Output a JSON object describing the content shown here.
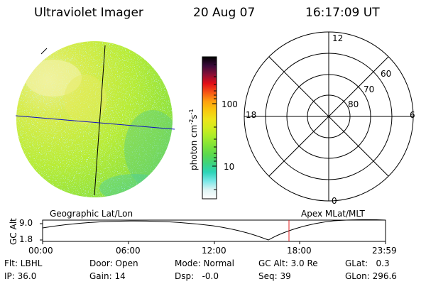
{
  "header": {
    "instrument": "Ultraviolet Imager",
    "date": "20 Aug 07",
    "time": "16:17:09 UT"
  },
  "colorbar": {
    "label": "photon cm",
    "label_exp1": "-2",
    "label_s": "s",
    "label_exp2": "-1",
    "ticks": [
      "100",
      "10"
    ],
    "colors": [
      "#000000",
      "#3a0a3a",
      "#8a0f36",
      "#e20d17",
      "#f55314",
      "#fe9f0f",
      "#f9c70e",
      "#eee41a",
      "#d2ec1e",
      "#a8ec2a",
      "#7fe338",
      "#5bd94d",
      "#3ed37d",
      "#2cd4b8",
      "#79e7e7",
      "#dff4f4",
      "#ffffff"
    ]
  },
  "polar_grid": {
    "lat_labels": [
      "80",
      "70",
      "60"
    ],
    "mlt_labels": [
      "12",
      "18",
      "6",
      "0"
    ]
  },
  "timeline": {
    "left_label": "Geographic Lat/Lon",
    "right_label": "Apex MLat/MLT",
    "yaxis_title": "GC Alt",
    "yaxis_ticks": [
      "9.0",
      "1.8"
    ],
    "xaxis_ticks": [
      "00:00",
      "06:00",
      "12:00",
      "18:00",
      "23:59"
    ],
    "marker_time": "16:17",
    "marker_color": "#e02020"
  },
  "status": {
    "flt": "Flt: LBHL",
    "ip": "IP: 36.0",
    "door": "Door: Open",
    "gain": "Gain: 14",
    "mode": "Mode: Normal",
    "dsp": "Dsp:   -0.0",
    "gc_alt": "GC Alt: 3.0 Re",
    "seq": "Seq: 39",
    "glat": "GLat:   0.3",
    "glon": "GLon: 296.6"
  }
}
